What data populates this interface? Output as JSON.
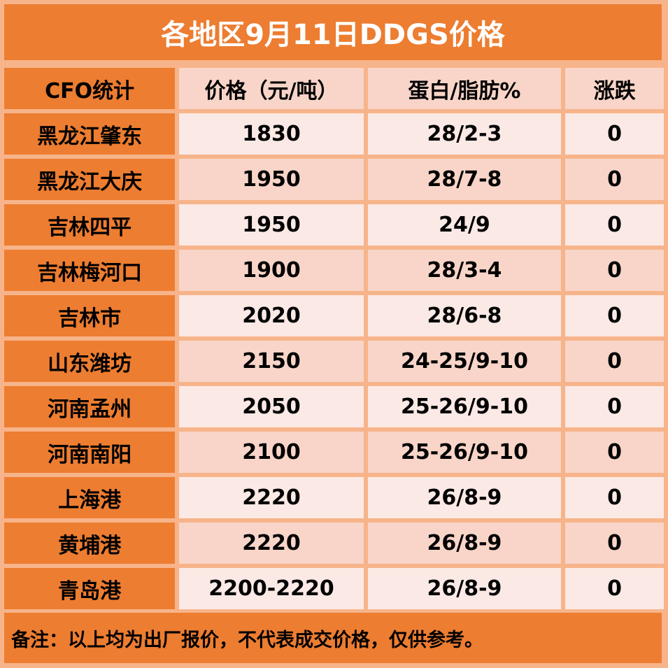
{
  "title": "各地区9月11日DDGS价格",
  "headers": [
    "CFO统计",
    "价格（元/吨）",
    "蛋白/脂肪%",
    "涨跌"
  ],
  "rows": [
    {
      "region": "黑龙江肇东",
      "price": "1830",
      "protein_fat": "28/2-3",
      "change": "0"
    },
    {
      "region": "黑龙江大庆",
      "price": "1950",
      "protein_fat": "28/7-8",
      "change": "0"
    },
    {
      "region": "吉林四平",
      "price": "1950",
      "protein_fat": "24/9",
      "change": "0"
    },
    {
      "region": "吉林梅河口",
      "price": "1900",
      "protein_fat": "28/3-4",
      "change": "0"
    },
    {
      "region": "吉林市",
      "price": "2020",
      "protein_fat": "28/6-8",
      "change": "0"
    },
    {
      "region": "山东潍坊",
      "price": "2150",
      "protein_fat": "24-25/9-10",
      "change": "0"
    },
    {
      "region": "河南孟州",
      "price": "2050",
      "protein_fat": "25-26/9-10",
      "change": "0"
    },
    {
      "region": "河南南阳",
      "price": "2100",
      "protein_fat": "25-26/9-10",
      "change": "0"
    },
    {
      "region": "上海港",
      "price": "2220",
      "protein_fat": "26/8-9",
      "change": "0"
    },
    {
      "region": "黄埔港",
      "price": "2220",
      "protein_fat": "26/8-9",
      "change": "0"
    },
    {
      "region": "青岛港",
      "price": "2200-2220",
      "protein_fat": "26/8-9",
      "change": "0"
    }
  ],
  "footnote": "备注：以上均为出厂报价，不代表成交价格，仅供参考。",
  "colors": {
    "header_orange": "#ed7d31",
    "border_peach": "#f7b48a",
    "cell_light": "#fbe9e5",
    "cell_dark": "#f8d5c8"
  }
}
